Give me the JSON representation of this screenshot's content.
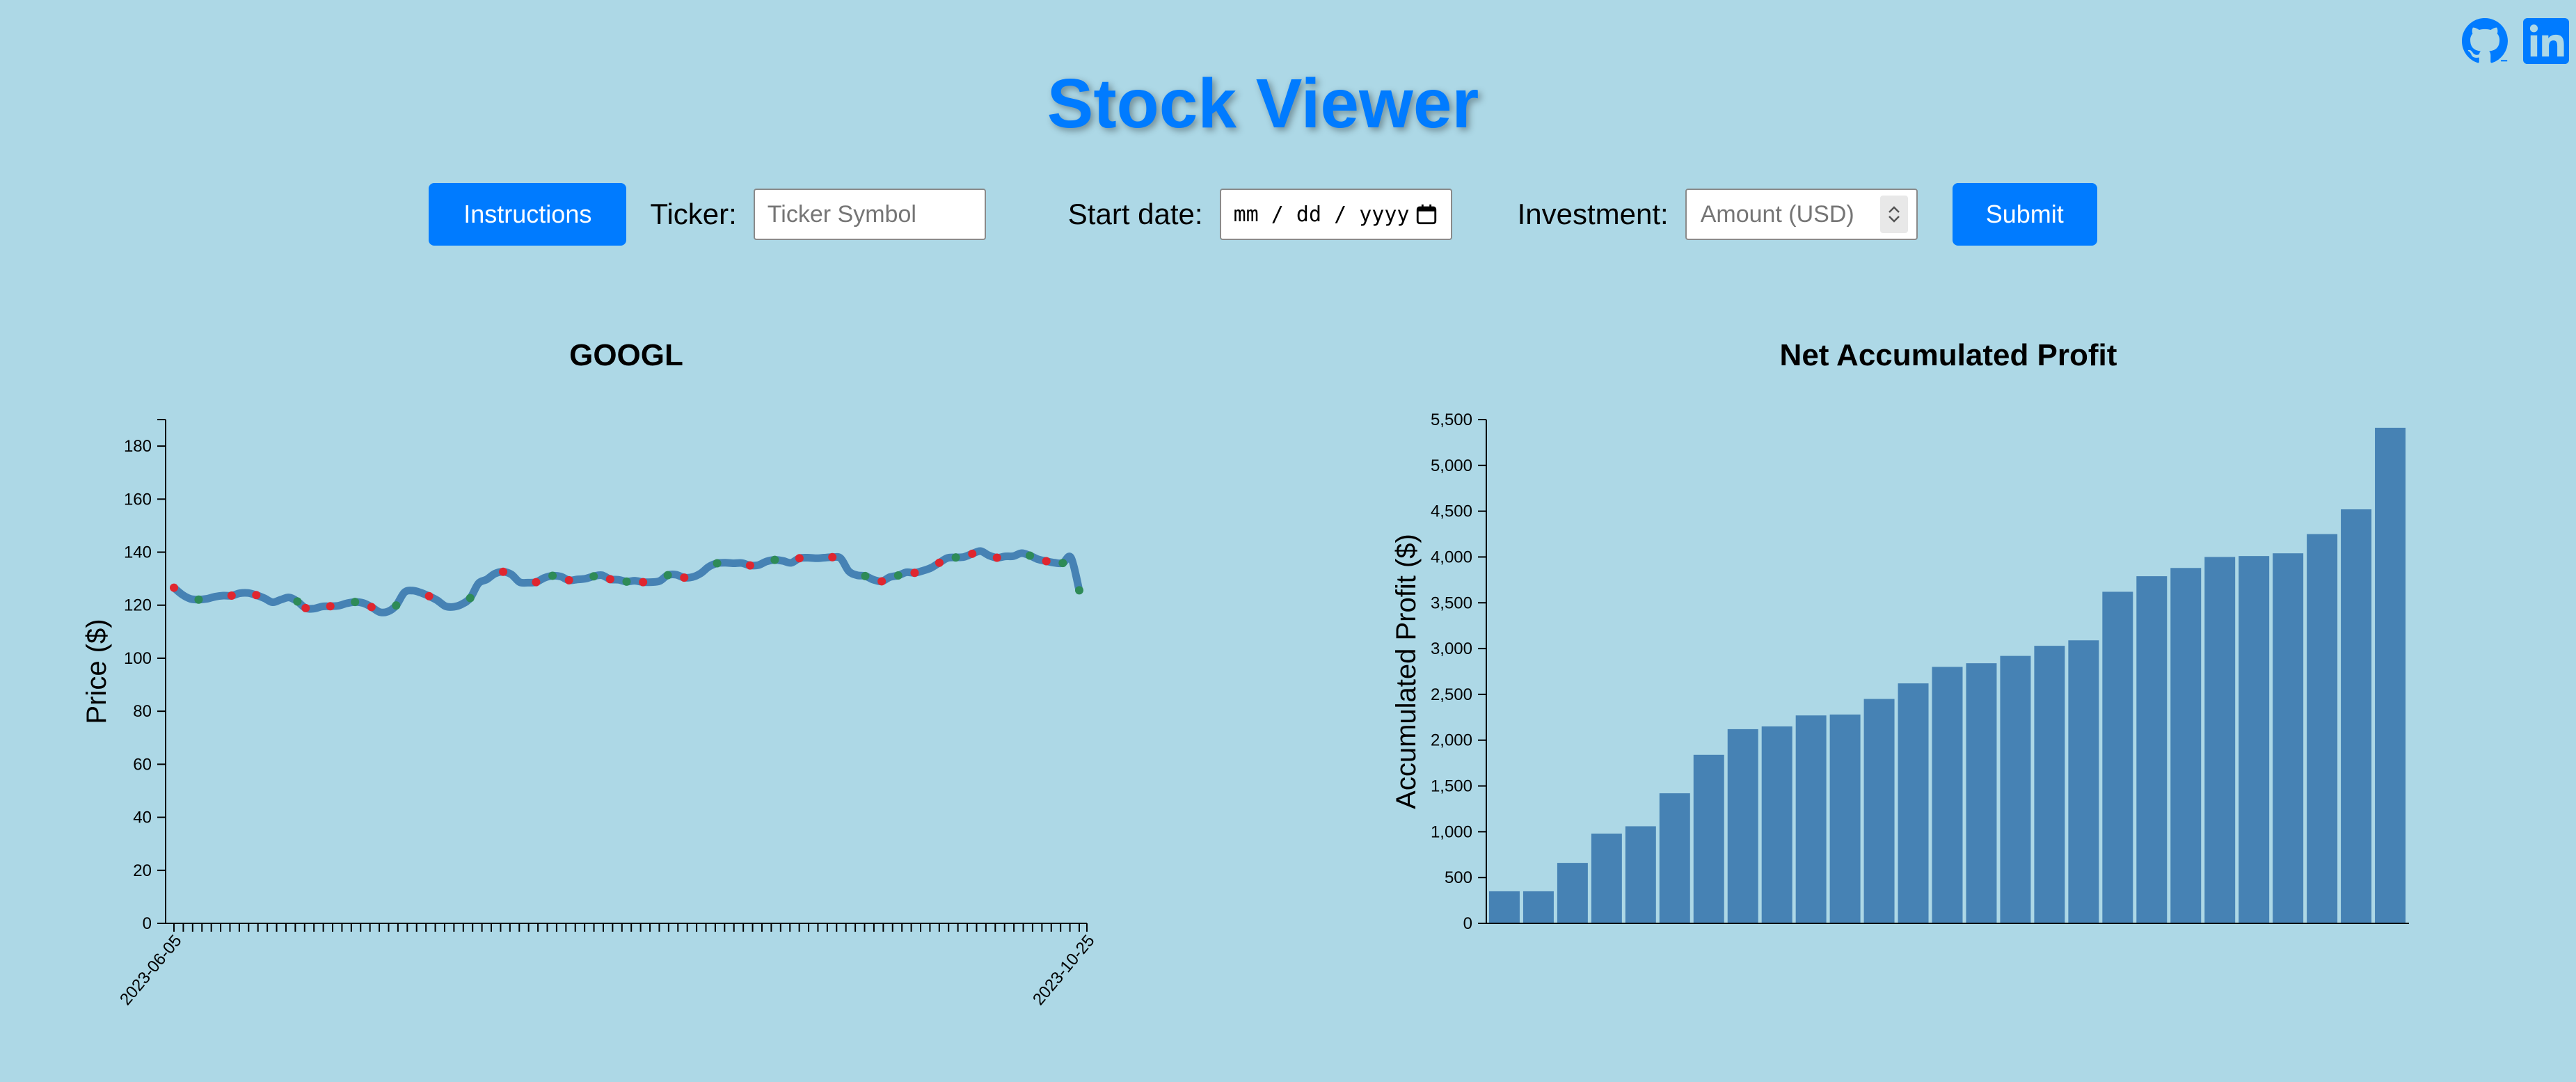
{
  "page": {
    "title": "Stock Viewer",
    "accent_color": "#007bff",
    "background_color": "#add8e6"
  },
  "social": [
    {
      "name": "github-icon",
      "icon": "github"
    },
    {
      "name": "linkedin-icon",
      "icon": "linkedin"
    }
  ],
  "controls": {
    "instructions_label": "Instructions",
    "ticker_label": "Ticker:",
    "ticker_placeholder": "Ticker Symbol",
    "ticker_value": "",
    "start_date_label": "Start date:",
    "start_date_placeholder": "mm / dd / yyyy",
    "start_date_value": "",
    "investment_label": "Investment:",
    "investment_placeholder": "Amount (USD)",
    "investment_value": "",
    "submit_label": "Submit"
  },
  "chart_data": [
    {
      "type": "line",
      "title": "GOOGL",
      "xlabel": "",
      "ylabel": "Price ($)",
      "ylim": [
        0,
        190
      ],
      "yticks": [
        0,
        20,
        40,
        60,
        80,
        100,
        120,
        140,
        160,
        180
      ],
      "x_start_label": "2023-06-05",
      "x_end_label": "2023-10-25",
      "line_color": "#4682b4",
      "buy_marker_color": "#2e8b57",
      "sell_marker_color": "#e0262f",
      "values": [
        126.6,
        124.0,
        122.4,
        122.1,
        122.4,
        123.2,
        123.6,
        123.6,
        124.5,
        124.6,
        123.8,
        122.6,
        121.1,
        122.1,
        122.9,
        121.4,
        118.9,
        118.7,
        119.5,
        119.6,
        119.8,
        120.7,
        121.2,
        120.8,
        119.3,
        117.4,
        117.6,
        119.9,
        124.8,
        125.5,
        124.7,
        123.4,
        121.8,
        119.6,
        119.4,
        120.4,
        122.7,
        128.2,
        129.7,
        131.9,
        132.6,
        131.6,
        128.7,
        128.5,
        128.7,
        130.3,
        131.1,
        130.8,
        129.4,
        129.7,
        130.0,
        130.9,
        131.3,
        129.8,
        129.6,
        128.9,
        129.2,
        128.7,
        128.7,
        129.1,
        131.3,
        131.5,
        130.4,
        130.6,
        132.0,
        134.5,
        135.8,
        136.0,
        135.8,
        135.9,
        135.0,
        135.1,
        136.5,
        137.1,
        136.7,
        136.0,
        137.7,
        137.9,
        137.7,
        137.9,
        138.1,
        137.7,
        132.8,
        131.3,
        131.0,
        129.6,
        129.0,
        130.6,
        131.2,
        132.4,
        132.2,
        133.0,
        134.1,
        136.0,
        137.8,
        138.0,
        138.2,
        139.4,
        140.4,
        138.8,
        137.9,
        138.4,
        138.5,
        139.6,
        138.7,
        137.3,
        136.6,
        136.0,
        135.9,
        137.9,
        125.6
      ],
      "markers": [
        {
          "i": 0,
          "kind": "sell"
        },
        {
          "i": 3,
          "kind": "buy"
        },
        {
          "i": 7,
          "kind": "sell"
        },
        {
          "i": 10,
          "kind": "sell"
        },
        {
          "i": 15,
          "kind": "buy"
        },
        {
          "i": 16,
          "kind": "sell"
        },
        {
          "i": 19,
          "kind": "sell"
        },
        {
          "i": 22,
          "kind": "buy"
        },
        {
          "i": 24,
          "kind": "sell"
        },
        {
          "i": 27,
          "kind": "buy"
        },
        {
          "i": 31,
          "kind": "sell"
        },
        {
          "i": 36,
          "kind": "buy"
        },
        {
          "i": 40,
          "kind": "sell"
        },
        {
          "i": 44,
          "kind": "sell"
        },
        {
          "i": 46,
          "kind": "buy"
        },
        {
          "i": 48,
          "kind": "sell"
        },
        {
          "i": 51,
          "kind": "buy"
        },
        {
          "i": 53,
          "kind": "sell"
        },
        {
          "i": 55,
          "kind": "buy"
        },
        {
          "i": 57,
          "kind": "sell"
        },
        {
          "i": 60,
          "kind": "buy"
        },
        {
          "i": 62,
          "kind": "sell"
        },
        {
          "i": 66,
          "kind": "buy"
        },
        {
          "i": 70,
          "kind": "sell"
        },
        {
          "i": 73,
          "kind": "buy"
        },
        {
          "i": 76,
          "kind": "sell"
        },
        {
          "i": 80,
          "kind": "sell"
        },
        {
          "i": 84,
          "kind": "buy"
        },
        {
          "i": 86,
          "kind": "sell"
        },
        {
          "i": 88,
          "kind": "buy"
        },
        {
          "i": 90,
          "kind": "sell"
        },
        {
          "i": 93,
          "kind": "sell"
        },
        {
          "i": 95,
          "kind": "buy"
        },
        {
          "i": 97,
          "kind": "sell"
        },
        {
          "i": 100,
          "kind": "sell"
        },
        {
          "i": 104,
          "kind": "buy"
        },
        {
          "i": 106,
          "kind": "sell"
        },
        {
          "i": 108,
          "kind": "buy"
        },
        {
          "i": 110,
          "kind": "buy"
        }
      ]
    },
    {
      "type": "bar",
      "title": "Net Accumulated Profit",
      "xlabel": "",
      "ylabel": "Accumulated Profit ($)",
      "ylim": [
        0,
        5500
      ],
      "yticks": [
        0,
        500,
        1000,
        1500,
        2000,
        2500,
        3000,
        3500,
        4000,
        4500,
        5000,
        5500
      ],
      "bar_color": "#4682b4",
      "values": [
        350,
        350,
        660,
        980,
        1060,
        1420,
        1840,
        2120,
        2150,
        2270,
        2280,
        2450,
        2620,
        2800,
        2840,
        2920,
        3030,
        3090,
        3620,
        3790,
        3880,
        4000,
        4010,
        4040,
        4250,
        4520,
        5410
      ]
    }
  ]
}
